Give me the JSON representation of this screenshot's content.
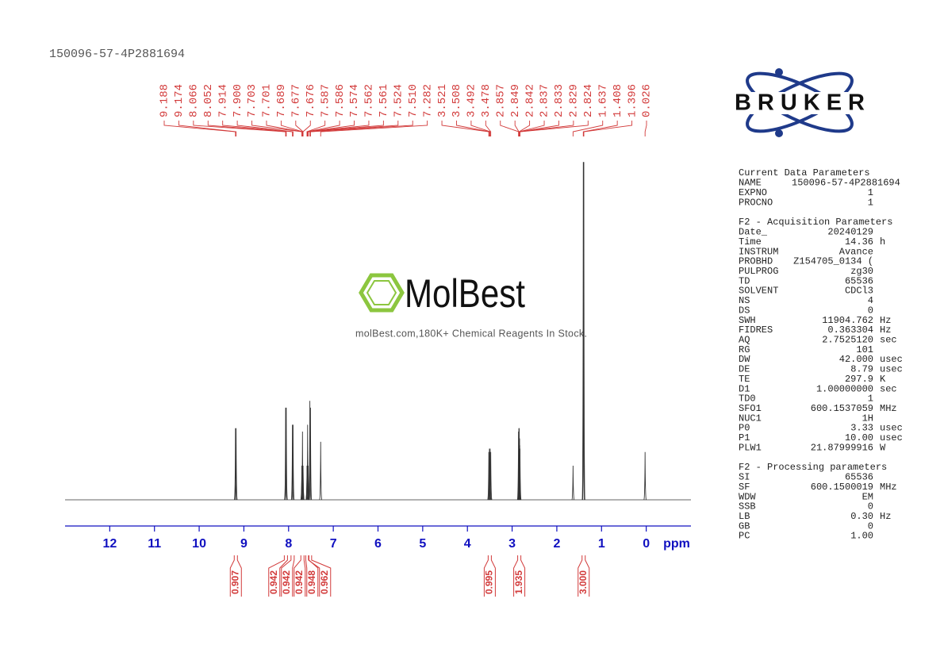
{
  "header": {
    "sample_id": "150096-57-4P2881694"
  },
  "logo": "BRUKER",
  "watermark": {
    "brand": "MolBest",
    "tagline": "molBest.com,180K+ Chemical Reagents In Stock."
  },
  "chart_data": {
    "type": "nmr",
    "xlabel": "ppm",
    "xlim": [
      13,
      -1
    ],
    "xticks": [
      12,
      11,
      10,
      9,
      8,
      7,
      6,
      5,
      4,
      3,
      2,
      1,
      0
    ],
    "ylim": [
      0,
      100
    ],
    "color": "#333333",
    "label_color": "#d23a3a",
    "peaks": {
      "x": [
        9.188,
        9.174,
        8.066,
        8.052,
        7.914,
        7.9,
        7.703,
        7.701,
        7.689,
        7.677,
        7.676,
        7.587,
        7.586,
        7.574,
        7.562,
        7.561,
        7.524,
        7.51,
        7.282,
        3.521,
        3.508,
        3.492,
        3.478,
        2.857,
        2.849,
        2.842,
        2.837,
        2.833,
        2.829,
        2.824,
        1.637,
        1.408,
        1.396,
        0.026
      ],
      "labels": [
        "9.188",
        "9.174",
        "8.066",
        "8.052",
        "7.914",
        "7.900",
        "7.703",
        "7.701",
        "7.689",
        "7.677",
        "7.676",
        "7.587",
        "7.586",
        "7.574",
        "7.562",
        "7.561",
        "7.524",
        "7.510",
        "7.282",
        "3.521",
        "3.508",
        "3.492",
        "3.478",
        "2.857",
        "2.849",
        "2.842",
        "2.837",
        "2.833",
        "2.829",
        "2.824",
        "1.637",
        "1.408",
        "1.396",
        "0.026"
      ],
      "values": [
        21,
        21,
        27,
        27,
        22,
        22,
        10,
        10,
        20,
        10,
        10,
        10,
        10,
        22,
        10,
        10,
        29,
        27,
        17,
        14,
        15,
        15,
        14,
        20,
        21,
        21,
        18,
        18,
        16,
        15,
        10,
        99,
        99,
        14
      ]
    },
    "integrals": {
      "x": [
        9.18,
        8.06,
        7.91,
        7.69,
        7.58,
        7.52,
        3.5,
        2.84,
        1.4
      ],
      "values": [
        0.907,
        0.942,
        0.942,
        0.942,
        0.948,
        0.962,
        0.995,
        1.935,
        3.0
      ],
      "value_labels": [
        "0.907",
        "0.942",
        "0.942",
        "0.942",
        "0.948",
        "0.962",
        "0.995",
        "1.935",
        "3.000"
      ]
    }
  },
  "parameters": {
    "sections": [
      {
        "title": "Current Data Parameters",
        "rows": [
          [
            "NAME",
            "150096-57-4P2881694"
          ],
          [
            "EXPNO",
            "1"
          ],
          [
            "PROCNO",
            "1"
          ]
        ]
      },
      {
        "title": "F2 - Acquisition Parameters",
        "rows": [
          [
            "Date_",
            "20240129"
          ],
          [
            "Time",
            "14.36",
            "h"
          ],
          [
            "INSTRUM",
            "Avance"
          ],
          [
            "PROBHD",
            "Z154705_0134 ("
          ],
          [
            "PULPROG",
            "zg30"
          ],
          [
            "TD",
            "65536"
          ],
          [
            "SOLVENT",
            "CDCl3"
          ],
          [
            "NS",
            "4"
          ],
          [
            "DS",
            "0"
          ],
          [
            "SWH",
            "11904.762",
            "Hz"
          ],
          [
            "FIDRES",
            "0.363304",
            "Hz"
          ],
          [
            "AQ",
            "2.7525120",
            "sec"
          ],
          [
            "RG",
            "101"
          ],
          [
            "DW",
            "42.000",
            "usec"
          ],
          [
            "DE",
            "8.79",
            "usec"
          ],
          [
            "TE",
            "297.9",
            "K"
          ],
          [
            "D1",
            "1.00000000",
            "sec"
          ],
          [
            "TD0",
            "1"
          ],
          [
            "SFO1",
            "600.1537059",
            "MHz"
          ],
          [
            "NUC1",
            "1H"
          ],
          [
            "P0",
            "3.33",
            "usec"
          ],
          [
            "P1",
            "10.00",
            "usec"
          ],
          [
            "PLW1",
            "21.87999916",
            "W"
          ]
        ]
      },
      {
        "title": "F2 - Processing parameters",
        "rows": [
          [
            "SI",
            "65536"
          ],
          [
            "SF",
            "600.1500019",
            "MHz"
          ],
          [
            "WDW",
            "EM"
          ],
          [
            "SSB",
            "0"
          ],
          [
            "LB",
            "0.30",
            "Hz"
          ],
          [
            "GB",
            "0"
          ],
          [
            "PC",
            "1.00"
          ]
        ]
      }
    ]
  }
}
